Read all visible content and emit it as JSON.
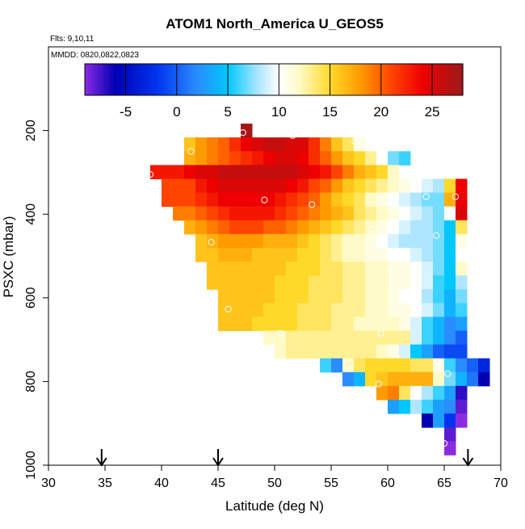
{
  "chart_data": {
    "type": "heatmap",
    "title": "ATOM1 North_America U_GEOS5",
    "flights_note": "Flts: 9,10,11",
    "dates_note": "MMDD: 0820,0822,0823",
    "xlabel": "Latitude (deg N)",
    "ylabel": "PSXC (mbar)",
    "xlim": [
      30,
      70
    ],
    "ylim": [
      1000,
      0
    ],
    "x_ticks": [
      30,
      35,
      40,
      45,
      50,
      55,
      60,
      65,
      70
    ],
    "y_ticks": [
      200,
      400,
      600,
      800,
      1000
    ],
    "colorbar": {
      "range": [
        -9,
        28
      ],
      "ticks": [
        -5,
        0,
        5,
        10,
        15,
        20,
        25
      ],
      "stops": [
        {
          "v": -9,
          "c": "#8a2be2"
        },
        {
          "v": -6,
          "c": "#0000b3"
        },
        {
          "v": -2,
          "c": "#0033ee"
        },
        {
          "v": 2,
          "c": "#2a8cff"
        },
        {
          "v": 5,
          "c": "#00c8ff"
        },
        {
          "v": 8,
          "c": "#aee6ff"
        },
        {
          "v": 10,
          "c": "#ffffff"
        },
        {
          "v": 12,
          "c": "#fffbc8"
        },
        {
          "v": 15,
          "c": "#ffd92a"
        },
        {
          "v": 18,
          "c": "#ff9a00"
        },
        {
          "v": 21,
          "c": "#ff4400"
        },
        {
          "v": 24,
          "c": "#ee0000"
        },
        {
          "v": 28,
          "c": "#9c1a1a"
        }
      ]
    },
    "lat_step": 1,
    "pres_step": 33,
    "rows": [
      {
        "p": 200,
        "lat_start": 47,
        "values": [
          27.5
        ]
      },
      {
        "p": 233,
        "lat_start": 42,
        "values": [
          16,
          18,
          19,
          20,
          22,
          24,
          25,
          26,
          26,
          25,
          25,
          22,
          19,
          16,
          14,
          11
        ]
      },
      {
        "p": 266,
        "lat_start": 42,
        "values": [
          17,
          18,
          19,
          20,
          21,
          22,
          23,
          24,
          25,
          25,
          24,
          22,
          20,
          18,
          16,
          15,
          13,
          10,
          7,
          6
        ]
      },
      {
        "p": 299,
        "lat_start": 39,
        "values": [
          23,
          23,
          23,
          24,
          25,
          25,
          26,
          26,
          26,
          26,
          26,
          26,
          26,
          25,
          24,
          23,
          21,
          19,
          17,
          16,
          15,
          12
        ]
      },
      {
        "p": 332,
        "lat_start": 40,
        "values": [
          21,
          21,
          21,
          23,
          24,
          25,
          25,
          25,
          25,
          25,
          25,
          24,
          23,
          21,
          20,
          18,
          16,
          15,
          14,
          13,
          12,
          11,
          10,
          9,
          8,
          15,
          24
        ]
      },
      {
        "p": 365,
        "lat_start": 40,
        "values": [
          21,
          21,
          21,
          22,
          23,
          24,
          24,
          24,
          24,
          24,
          23,
          22,
          21,
          20,
          18,
          16,
          15,
          14,
          12,
          11,
          10,
          9,
          8,
          7,
          7,
          17,
          24
        ]
      },
      {
        "p": 398,
        "lat_start": 41,
        "values": [
          19,
          19,
          20,
          21,
          22,
          23,
          23,
          23,
          23,
          22,
          21,
          20,
          19,
          18,
          17,
          16,
          14,
          13,
          12,
          11,
          10,
          9,
          8,
          7,
          10,
          25
        ]
      },
      {
        "p": 431,
        "lat_start": 42,
        "values": [
          17,
          18,
          19,
          20,
          21,
          21,
          21,
          20,
          20,
          19,
          18,
          17,
          16,
          15,
          14,
          13,
          12,
          11,
          10,
          9,
          8,
          8,
          7,
          5,
          14
        ]
      },
      {
        "p": 464,
        "lat_start": 43,
        "values": [
          16,
          17,
          18,
          18,
          18,
          18,
          17,
          17,
          17,
          16,
          15,
          14,
          13,
          12,
          12,
          11,
          10,
          9,
          8,
          8,
          8,
          7,
          5,
          11
        ]
      },
      {
        "p": 497,
        "lat_start": 43,
        "values": [
          16,
          16,
          17,
          17,
          17,
          16,
          16,
          16,
          16,
          15,
          15,
          14,
          13,
          12,
          12,
          11,
          11,
          10,
          10,
          9,
          8,
          7,
          5,
          10
        ]
      },
      {
        "p": 530,
        "lat_start": 44,
        "values": [
          16,
          16,
          16,
          16,
          16,
          16,
          16,
          15,
          15,
          15,
          14,
          14,
          13,
          13,
          12,
          12,
          11,
          11,
          10,
          9,
          7,
          5,
          12
        ]
      },
      {
        "p": 563,
        "lat_start": 44,
        "values": [
          16,
          16,
          16,
          16,
          16,
          16,
          15,
          15,
          15,
          14,
          14,
          14,
          13,
          13,
          12,
          12,
          11,
          11,
          10,
          9,
          6,
          5,
          8
        ]
      },
      {
        "p": 596,
        "lat_start": 45,
        "values": [
          16,
          16,
          16,
          16,
          16,
          15,
          15,
          15,
          14,
          14,
          14,
          13,
          13,
          12,
          12,
          11,
          10,
          10,
          8,
          6,
          4,
          7
        ]
      },
      {
        "p": 629,
        "lat_start": 45,
        "values": [
          16,
          16,
          16,
          16,
          15,
          15,
          15,
          14,
          14,
          14,
          13,
          13,
          13,
          12,
          12,
          11,
          11,
          10,
          9,
          7,
          4,
          6
        ]
      },
      {
        "p": 662,
        "lat_start": 45,
        "values": [
          16,
          16,
          16,
          15,
          15,
          15,
          15,
          14,
          14,
          14,
          13,
          13,
          12,
          12,
          12,
          12,
          11,
          9,
          6,
          4,
          2,
          3
        ]
      },
      {
        "p": 695,
        "lat_start": 49,
        "values": [
          12,
          12,
          13,
          13,
          13,
          13,
          13,
          13,
          13,
          13,
          13,
          13,
          13,
          9,
          6,
          4,
          2,
          0
        ]
      },
      {
        "p": 728,
        "lat_start": 50,
        "values": [
          12,
          13,
          13,
          13,
          13,
          13,
          13,
          13,
          13,
          12,
          11,
          9,
          5,
          3,
          0,
          -1,
          -1
        ]
      },
      {
        "p": 761,
        "lat_start": 54,
        "values": [
          6,
          2,
          12,
          14,
          15,
          15,
          15,
          15,
          14,
          14,
          11,
          6,
          2,
          0,
          -3
        ]
      },
      {
        "p": 794,
        "lat_start": 56,
        "values": [
          2,
          4,
          15,
          16,
          17,
          17,
          17,
          17,
          12,
          7,
          4,
          1,
          -6
        ]
      },
      {
        "p": 827,
        "lat_start": 59,
        "values": [
          18,
          19,
          14,
          10,
          8,
          6,
          3,
          -7
        ]
      },
      {
        "p": 860,
        "lat_start": 60,
        "values": [
          3,
          5,
          8,
          6,
          3,
          2,
          -8
        ]
      },
      {
        "p": 893,
        "lat_start": 63,
        "values": [
          -6,
          3,
          -2,
          -9
        ]
      },
      {
        "p": 926,
        "lat_start": 65,
        "values": [
          -8
        ]
      },
      {
        "p": 959,
        "lat_start": 65,
        "values": [
          -9
        ]
      }
    ],
    "circles": [
      {
        "lat": 47.2,
        "p": 205
      },
      {
        "lat": 51.6,
        "p": 212
      },
      {
        "lat": 57.1,
        "p": 226
      },
      {
        "lat": 42.6,
        "p": 250
      },
      {
        "lat": 39.0,
        "p": 305
      },
      {
        "lat": 49.1,
        "p": 366
      },
      {
        "lat": 53.3,
        "p": 377
      },
      {
        "lat": 63.4,
        "p": 358
      },
      {
        "lat": 66.0,
        "p": 358
      },
      {
        "lat": 58.6,
        "p": 436
      },
      {
        "lat": 64.3,
        "p": 451
      },
      {
        "lat": 44.4,
        "p": 467
      },
      {
        "lat": 45.9,
        "p": 627
      },
      {
        "lat": 50.5,
        "p": 685
      },
      {
        "lat": 59.4,
        "p": 685
      },
      {
        "lat": 65.3,
        "p": 781
      },
      {
        "lat": 59.2,
        "p": 806
      },
      {
        "lat": 65.0,
        "p": 948
      }
    ],
    "arrows_lat": [
      34.7,
      45,
      67.1
    ]
  }
}
